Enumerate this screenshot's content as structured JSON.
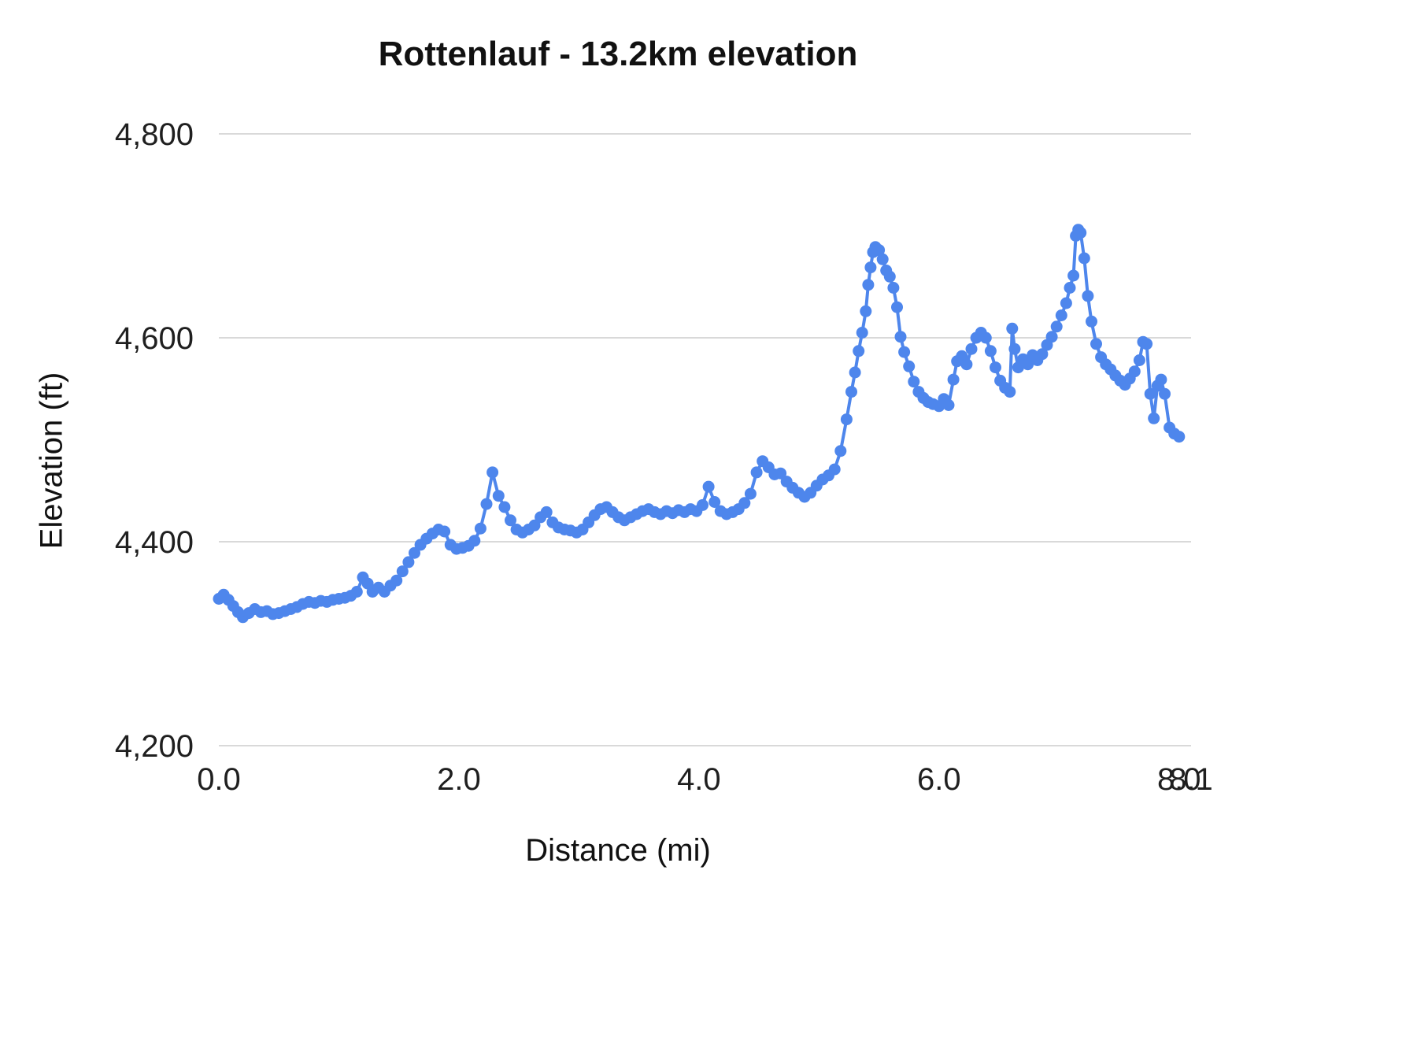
{
  "chart_data": {
    "type": "line",
    "title": "Rottenlauf - 13.2km elevation",
    "xlabel": "Distance (mi)",
    "ylabel": "Elevation (ft)",
    "xlim": [
      0,
      8.1
    ],
    "ylim": [
      4200,
      4800
    ],
    "grid": true,
    "legend": "none",
    "line_color": "#4e86ec",
    "marker": "circle",
    "x_ticks": [
      {
        "label": "0.0",
        "v": 0
      },
      {
        "label": "2.0",
        "v": 2
      },
      {
        "label": "4.0",
        "v": 4
      },
      {
        "label": "6.0",
        "v": 6
      },
      {
        "label": "8.0",
        "v": 8
      }
    ],
    "x_end_label": {
      "label": "8.1",
      "v": 8.1
    },
    "y_ticks": [
      {
        "label": "4,200",
        "v": 4200
      },
      {
        "label": "4,400",
        "v": 4400
      },
      {
        "label": "4,600",
        "v": 4600
      },
      {
        "label": "4,800",
        "v": 4800
      }
    ],
    "series": [
      {
        "name": "Elevation",
        "points": [
          [
            0.0,
            4344
          ],
          [
            0.04,
            4348
          ],
          [
            0.08,
            4343
          ],
          [
            0.12,
            4337
          ],
          [
            0.16,
            4331
          ],
          [
            0.2,
            4326
          ],
          [
            0.25,
            4330
          ],
          [
            0.3,
            4334
          ],
          [
            0.35,
            4331
          ],
          [
            0.4,
            4332
          ],
          [
            0.45,
            4329
          ],
          [
            0.5,
            4330
          ],
          [
            0.55,
            4332
          ],
          [
            0.6,
            4334
          ],
          [
            0.65,
            4336
          ],
          [
            0.7,
            4339
          ],
          [
            0.75,
            4341
          ],
          [
            0.8,
            4340
          ],
          [
            0.85,
            4342
          ],
          [
            0.9,
            4341
          ],
          [
            0.95,
            4343
          ],
          [
            1.0,
            4344
          ],
          [
            1.05,
            4345
          ],
          [
            1.1,
            4347
          ],
          [
            1.15,
            4351
          ],
          [
            1.2,
            4365
          ],
          [
            1.24,
            4359
          ],
          [
            1.28,
            4351
          ],
          [
            1.33,
            4355
          ],
          [
            1.38,
            4351
          ],
          [
            1.43,
            4357
          ],
          [
            1.48,
            4362
          ],
          [
            1.53,
            4371
          ],
          [
            1.58,
            4380
          ],
          [
            1.63,
            4389
          ],
          [
            1.68,
            4397
          ],
          [
            1.73,
            4403
          ],
          [
            1.78,
            4408
          ],
          [
            1.83,
            4412
          ],
          [
            1.88,
            4410
          ],
          [
            1.93,
            4397
          ],
          [
            1.98,
            4393
          ],
          [
            2.03,
            4394
          ],
          [
            2.08,
            4396
          ],
          [
            2.13,
            4401
          ],
          [
            2.18,
            4413
          ],
          [
            2.23,
            4437
          ],
          [
            2.28,
            4468
          ],
          [
            2.33,
            4445
          ],
          [
            2.38,
            4434
          ],
          [
            2.43,
            4421
          ],
          [
            2.48,
            4412
          ],
          [
            2.53,
            4409
          ],
          [
            2.58,
            4412
          ],
          [
            2.63,
            4416
          ],
          [
            2.68,
            4424
          ],
          [
            2.73,
            4429
          ],
          [
            2.78,
            4419
          ],
          [
            2.83,
            4414
          ],
          [
            2.88,
            4412
          ],
          [
            2.93,
            4411
          ],
          [
            2.98,
            4409
          ],
          [
            3.03,
            4412
          ],
          [
            3.08,
            4419
          ],
          [
            3.13,
            4426
          ],
          [
            3.18,
            4432
          ],
          [
            3.23,
            4434
          ],
          [
            3.28,
            4429
          ],
          [
            3.33,
            4424
          ],
          [
            3.38,
            4421
          ],
          [
            3.43,
            4424
          ],
          [
            3.48,
            4427
          ],
          [
            3.53,
            4430
          ],
          [
            3.58,
            4432
          ],
          [
            3.63,
            4429
          ],
          [
            3.68,
            4427
          ],
          [
            3.73,
            4430
          ],
          [
            3.78,
            4428
          ],
          [
            3.83,
            4431
          ],
          [
            3.88,
            4429
          ],
          [
            3.93,
            4432
          ],
          [
            3.98,
            4430
          ],
          [
            4.03,
            4436
          ],
          [
            4.08,
            4454
          ],
          [
            4.13,
            4439
          ],
          [
            4.18,
            4430
          ],
          [
            4.23,
            4427
          ],
          [
            4.28,
            4429
          ],
          [
            4.33,
            4432
          ],
          [
            4.38,
            4438
          ],
          [
            4.43,
            4447
          ],
          [
            4.48,
            4468
          ],
          [
            4.53,
            4479
          ],
          [
            4.58,
            4473
          ],
          [
            4.63,
            4466
          ],
          [
            4.68,
            4467
          ],
          [
            4.73,
            4459
          ],
          [
            4.78,
            4453
          ],
          [
            4.83,
            4448
          ],
          [
            4.88,
            4444
          ],
          [
            4.93,
            4448
          ],
          [
            4.98,
            4455
          ],
          [
            5.03,
            4461
          ],
          [
            5.08,
            4465
          ],
          [
            5.13,
            4471
          ],
          [
            5.18,
            4489
          ],
          [
            5.23,
            4520
          ],
          [
            5.27,
            4547
          ],
          [
            5.3,
            4566
          ],
          [
            5.33,
            4587
          ],
          [
            5.36,
            4605
          ],
          [
            5.39,
            4626
          ],
          [
            5.41,
            4652
          ],
          [
            5.43,
            4669
          ],
          [
            5.45,
            4684
          ],
          [
            5.47,
            4689
          ],
          [
            5.5,
            4686
          ],
          [
            5.53,
            4677
          ],
          [
            5.56,
            4666
          ],
          [
            5.59,
            4660
          ],
          [
            5.62,
            4649
          ],
          [
            5.65,
            4630
          ],
          [
            5.68,
            4601
          ],
          [
            5.71,
            4586
          ],
          [
            5.75,
            4572
          ],
          [
            5.79,
            4557
          ],
          [
            5.83,
            4547
          ],
          [
            5.87,
            4541
          ],
          [
            5.91,
            4537
          ],
          [
            5.95,
            4535
          ],
          [
            6.0,
            4533
          ],
          [
            6.04,
            4540
          ],
          [
            6.08,
            4534
          ],
          [
            6.12,
            4559
          ],
          [
            6.15,
            4577
          ],
          [
            6.19,
            4582
          ],
          [
            6.23,
            4574
          ],
          [
            6.27,
            4589
          ],
          [
            6.31,
            4600
          ],
          [
            6.35,
            4605
          ],
          [
            6.39,
            4600
          ],
          [
            6.43,
            4587
          ],
          [
            6.47,
            4571
          ],
          [
            6.51,
            4558
          ],
          [
            6.55,
            4551
          ],
          [
            6.59,
            4547
          ],
          [
            6.61,
            4609
          ],
          [
            6.63,
            4589
          ],
          [
            6.66,
            4571
          ],
          [
            6.7,
            4579
          ],
          [
            6.74,
            4574
          ],
          [
            6.78,
            4583
          ],
          [
            6.82,
            4578
          ],
          [
            6.86,
            4584
          ],
          [
            6.9,
            4593
          ],
          [
            6.94,
            4601
          ],
          [
            6.98,
            4611
          ],
          [
            7.02,
            4622
          ],
          [
            7.06,
            4634
          ],
          [
            7.09,
            4649
          ],
          [
            7.12,
            4661
          ],
          [
            7.14,
            4700
          ],
          [
            7.16,
            4706
          ],
          [
            7.18,
            4703
          ],
          [
            7.21,
            4678
          ],
          [
            7.24,
            4641
          ],
          [
            7.27,
            4616
          ],
          [
            7.31,
            4594
          ],
          [
            7.35,
            4581
          ],
          [
            7.39,
            4574
          ],
          [
            7.43,
            4569
          ],
          [
            7.47,
            4563
          ],
          [
            7.51,
            4558
          ],
          [
            7.55,
            4554
          ],
          [
            7.59,
            4560
          ],
          [
            7.63,
            4567
          ],
          [
            7.67,
            4578
          ],
          [
            7.7,
            4596
          ],
          [
            7.73,
            4594
          ],
          [
            7.76,
            4545
          ],
          [
            7.79,
            4521
          ],
          [
            7.82,
            4553
          ],
          [
            7.85,
            4559
          ],
          [
            7.88,
            4545
          ],
          [
            7.92,
            4512
          ],
          [
            7.96,
            4506
          ],
          [
            8.0,
            4503
          ]
        ]
      }
    ]
  }
}
